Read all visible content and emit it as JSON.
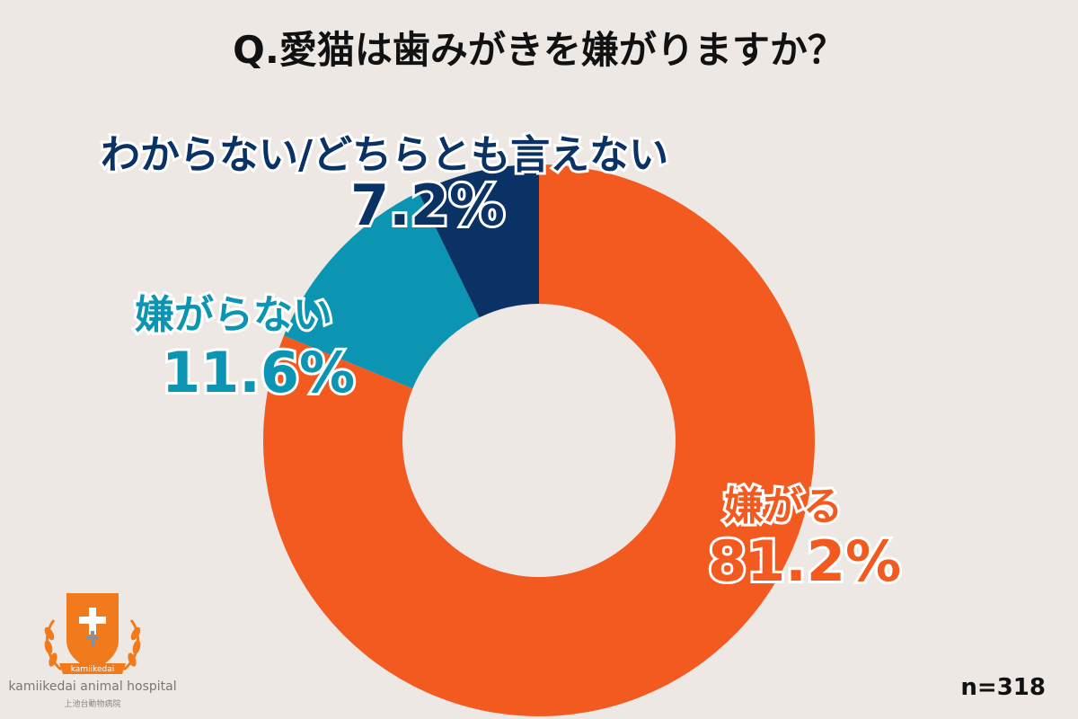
{
  "title": "Q.愛猫は歯みがきを嫌がりますか？",
  "sample": "n=318",
  "logo": {
    "name": "kamiikedai animal hospital",
    "sub": "上池台動物病院",
    "ribbon": "kamiikedai"
  },
  "colors": {
    "orange": "#f35a20",
    "teal": "#0b95b2",
    "navy": "#0b3264",
    "background": "#ede8e4"
  },
  "chart_data": {
    "type": "pie",
    "variant": "donut",
    "slices": [
      {
        "label": "嫌がる",
        "value": 81.2,
        "display": "81.2%",
        "color": "#f35a20"
      },
      {
        "label": "嫌がらない",
        "value": 11.6,
        "display": "11.6%",
        "color": "#0b95b2"
      },
      {
        "label": "わからない/どちらとも言えない",
        "value": 7.2,
        "display": "7.2%",
        "color": "#0b3264"
      }
    ]
  }
}
